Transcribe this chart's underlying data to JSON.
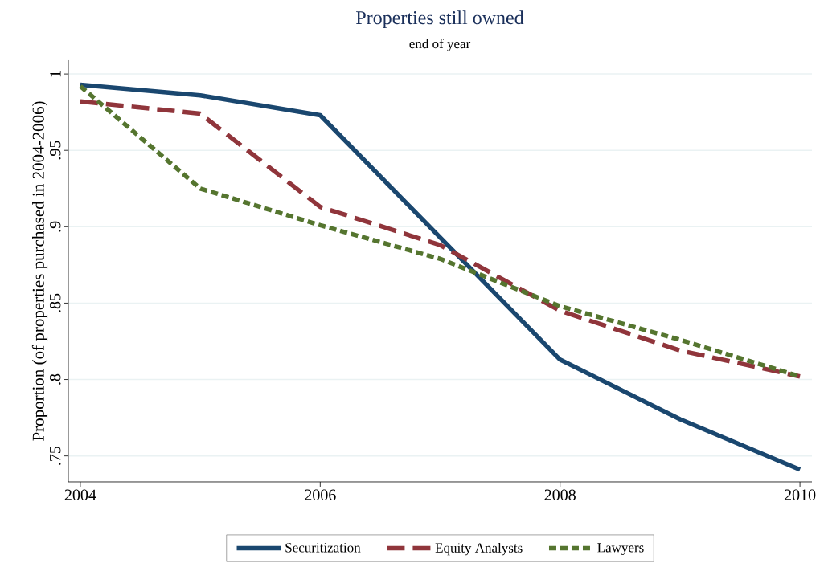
{
  "chart_data": {
    "type": "line",
    "title": "Properties still owned",
    "subtitle": "end of year",
    "ylabel": "Proportion (of properties purchased in 2004-2006)",
    "x": [
      2004,
      2005,
      2006,
      2007,
      2008,
      2009,
      2010
    ],
    "series": [
      {
        "name": "Securitization",
        "color": "#1a476f",
        "line_style": "solid",
        "values": [
          0.993,
          0.986,
          0.973,
          0.893,
          0.813,
          0.774,
          0.741
        ]
      },
      {
        "name": "Equity Analysts",
        "color": "#90353b",
        "line_style": "dashed",
        "values": [
          0.982,
          0.974,
          0.913,
          0.888,
          0.845,
          0.819,
          0.802
        ]
      },
      {
        "name": "Lawyers",
        "color": "#55752f",
        "line_style": "dotted",
        "values": [
          0.992,
          0.925,
          0.901,
          0.879,
          0.848,
          0.826,
          0.802
        ]
      }
    ],
    "xlim": [
      2003.9,
      2010.1
    ],
    "ylim": [
      0.733,
      1.009
    ],
    "xticks": [
      2004,
      2006,
      2008,
      2010
    ],
    "yticks": [
      {
        "value": 0.75,
        "label": ".75"
      },
      {
        "value": 0.8,
        "label": ".8"
      },
      {
        "value": 0.85,
        "label": ".85"
      },
      {
        "value": 0.9,
        "label": ".9"
      },
      {
        "value": 0.95,
        "label": ".95"
      },
      1
    ],
    "grid": "y",
    "legend": "bottom"
  }
}
